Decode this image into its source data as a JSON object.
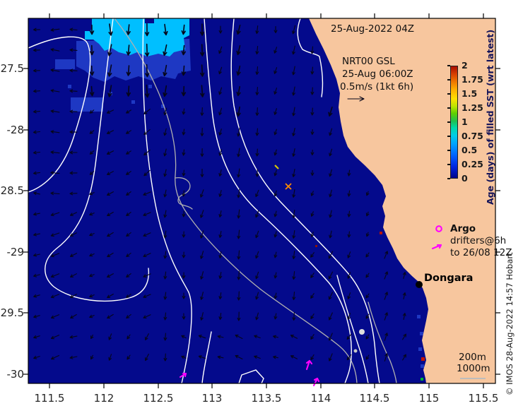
{
  "figure": {
    "timestamp": "25-Aug-2022 04Z",
    "annotation_line1": "NRT00 GSL",
    "annotation_line2": "25-Aug 06:00Z",
    "annotation_line3": "0.5m/s (1kt 6h)",
    "credit": "© IMOS 28-Aug-2022 14:57 Hobart"
  },
  "axes": {
    "x_tick_labels": [
      "111.5",
      "112",
      "112.5",
      "113",
      "113.5",
      "114",
      "114.5",
      "115",
      "115.5"
    ],
    "y_tick_labels": [
      "-27.5",
      "-28",
      "-28.5",
      "-29",
      "-29.5",
      "-30"
    ]
  },
  "colorbar": {
    "title": "Age (days) of filled SST (wrt latest)",
    "tick_labels": [
      "2",
      "1.75",
      "1.5",
      "1.25",
      "1",
      "0.75",
      "0.5",
      "0.25",
      "0"
    ]
  },
  "legend": {
    "argo_label": "Argo",
    "drifters_label_line1": "drifters@6h",
    "drifters_label_line2": "to 26/08 12Z",
    "isobath_200_label": "200m",
    "isobath_1000_label": "1000m"
  },
  "map": {
    "place_label": "Dongara",
    "colors": {
      "ocean": "#040a8c",
      "land": "#f7c69e",
      "sst_age_blue": "#1e38c3",
      "sst_age_cyan": "#00bfff",
      "contour_white": "#ffffff",
      "contour_gray": "#b0b0b0",
      "drifter_magenta": "#ff00ff",
      "marker_dark_red": "#b41400",
      "marker_green": "#00b433",
      "marker_orange": "#ff8c00",
      "marker_yellow": "#d8c800"
    }
  }
}
